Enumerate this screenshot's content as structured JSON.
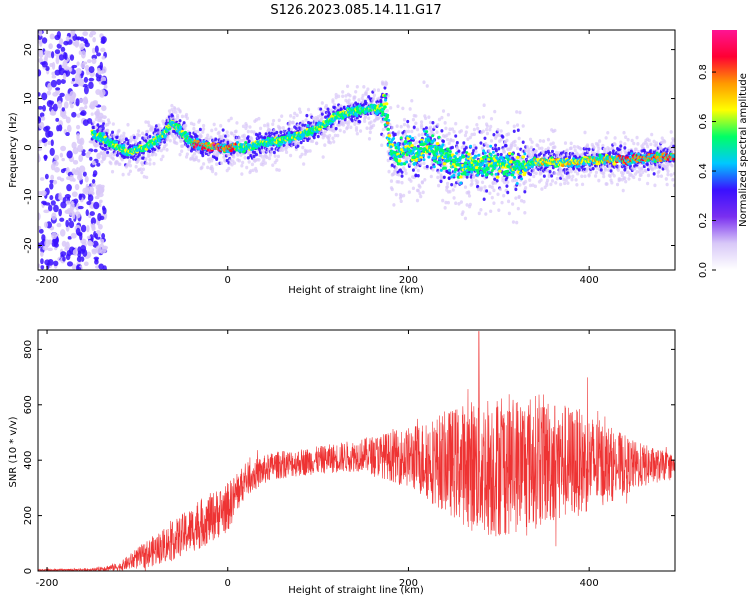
{
  "title": "S126.2023.085.14.11.G17",
  "colors": {
    "snr_line": "#ee3333",
    "colormap": [
      "#ffffff",
      "#d8c8f8",
      "#7a2ff0",
      "#3a10ff",
      "#00c8ff",
      "#00ff66",
      "#ffff00",
      "#ff9900",
      "#ff0033",
      "#ff1493"
    ]
  },
  "chart_data": [
    {
      "type": "heatmap",
      "name": "spectrogram",
      "xlabel": "Height of straight line (km)",
      "ylabel": "Frequency (Hz)",
      "xlim": [
        -210,
        495
      ],
      "ylim": [
        -25,
        24
      ],
      "xticks": [
        -200,
        0,
        200,
        400
      ],
      "yticks": [
        -20,
        -10,
        0,
        10,
        20
      ],
      "colorbar": {
        "label": "Normalized spectral amplitude",
        "range": [
          0,
          0.97
        ],
        "ticks": [
          0.0,
          0.2,
          0.4,
          0.6,
          0.8
        ]
      },
      "ridge": {
        "x": [
          -150,
          -130,
          -110,
          -90,
          -70,
          -62,
          -50,
          -40,
          -20,
          0,
          20,
          40,
          60,
          80,
          100,
          120,
          140,
          160,
          175,
          180,
          190,
          200,
          210,
          220,
          240,
          260,
          280,
          300,
          320,
          340,
          360,
          380,
          400,
          420,
          440,
          460,
          480,
          495
        ],
        "y": [
          3,
          1,
          -1,
          0,
          3,
          5,
          3,
          1,
          0,
          0,
          0,
          1,
          1.5,
          2.5,
          4,
          6.5,
          7.5,
          8,
          8,
          0,
          -2,
          0,
          -2,
          1,
          -2,
          -4,
          -3,
          -3,
          -4,
          -3,
          -3,
          -3,
          -2.5,
          -2.5,
          -2.5,
          -2,
          -2,
          -2
        ]
      },
      "noise_region_x": [
        -210,
        -135
      ]
    },
    {
      "type": "line",
      "name": "snr",
      "xlabel": "Height of straight line (km)",
      "ylabel": "SNR (10 * v/v)",
      "xlim": [
        -210,
        495
      ],
      "ylim": [
        0,
        870
      ],
      "xticks": [
        -200,
        0,
        200,
        400
      ],
      "yticks": [
        0,
        200,
        400,
        600,
        800
      ],
      "envelope": {
        "x": [
          -210,
          -150,
          -120,
          -90,
          -60,
          -30,
          0,
          20,
          50,
          100,
          150,
          200,
          250,
          280,
          300,
          350,
          400,
          450,
          495
        ],
        "mean": [
          3,
          5,
          15,
          60,
          110,
          170,
          230,
          330,
          380,
          400,
          420,
          410,
          390,
          380,
          380,
          400,
          390,
          380,
          380
        ],
        "amplitude": [
          3,
          5,
          15,
          50,
          70,
          90,
          90,
          60,
          50,
          50,
          60,
          110,
          200,
          260,
          260,
          240,
          180,
          90,
          40
        ]
      },
      "peak": {
        "x": 278,
        "y": 865
      }
    }
  ]
}
